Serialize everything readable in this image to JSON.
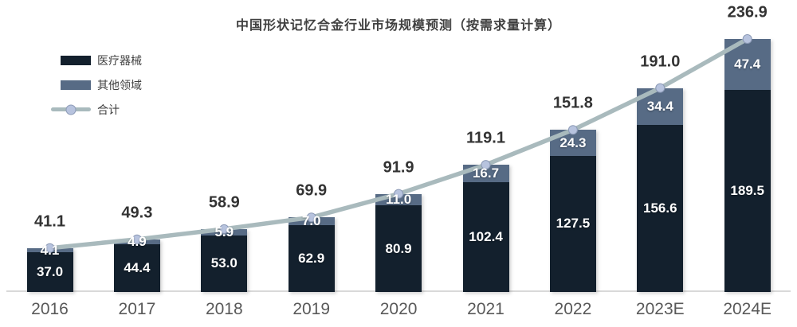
{
  "chart_data": {
    "type": "bar",
    "subtype": "stacked-bars-with-total-line",
    "title": "中国形状记忆合金行业市场规模预测（按需求量计算）",
    "categories": [
      "2016",
      "2017",
      "2018",
      "2019",
      "2020",
      "2021",
      "2022",
      "2023E",
      "2024E"
    ],
    "series": [
      {
        "name": "医疗器械",
        "type": "bar",
        "color": "#13202d",
        "values": [
          37.0,
          44.4,
          53.0,
          62.9,
          80.9,
          102.4,
          127.5,
          156.6,
          189.5
        ]
      },
      {
        "name": "其他领域",
        "type": "bar",
        "color": "#576b85",
        "values": [
          4.1,
          4.9,
          5.9,
          7.0,
          11.0,
          16.7,
          24.3,
          34.4,
          47.4
        ]
      },
      {
        "name": "合计",
        "type": "line",
        "color": "#a9babd",
        "marker_color": "#b7c3de",
        "marker_stroke": "#8c9ab6",
        "values": [
          41.1,
          49.3,
          58.9,
          69.9,
          91.9,
          119.1,
          151.8,
          191.0,
          236.9
        ]
      }
    ],
    "ylim": [
      0,
      250
    ],
    "grid": false,
    "axis_line_color": "#d9d9d9",
    "legend_position": "top-left",
    "data_labels": true,
    "stack_order_bottom_to_top": [
      "医疗器械",
      "其他领域"
    ]
  }
}
